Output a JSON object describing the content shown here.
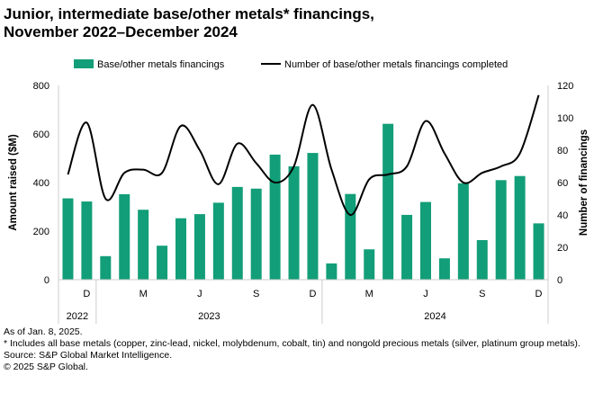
{
  "chart_data": {
    "type": "bar+line",
    "title": "Junior, intermediate base/other metals* financings, November 2022–December 2024",
    "categories": [
      "Nov 2022",
      "Dec 2022",
      "Jan 2023",
      "Feb 2023",
      "Mar 2023",
      "Apr 2023",
      "May 2023",
      "Jun 2023",
      "Jul 2023",
      "Aug 2023",
      "Sep 2023",
      "Oct 2023",
      "Nov 2023",
      "Dec 2023",
      "Jan 2024",
      "Feb 2024",
      "Mar 2024",
      "Apr 2024",
      "May 2024",
      "Jun 2024",
      "Jul 2024",
      "Aug 2024",
      "Sep 2024",
      "Oct 2024",
      "Nov 2024",
      "Dec 2024"
    ],
    "month_ticks": [
      "",
      "D",
      "",
      "",
      "M",
      "",
      "",
      "J",
      "",
      "",
      "S",
      "",
      "",
      "D",
      "",
      "",
      "M",
      "",
      "",
      "J",
      "",
      "",
      "S",
      "",
      "",
      "D"
    ],
    "years": [
      {
        "label": "2022",
        "from": 0,
        "to": 1
      },
      {
        "label": "2023",
        "from": 2,
        "to": 13
      },
      {
        "label": "2024",
        "from": 14,
        "to": 25
      }
    ],
    "series": [
      {
        "name": "Base/other metals financings",
        "type": "bar",
        "axis": "left",
        "color": "#129e78",
        "values": [
          335,
          322,
          97,
          352,
          288,
          140,
          253,
          270,
          317,
          382,
          375,
          515,
          467,
          522,
          67,
          353,
          125,
          642,
          267,
          320,
          88,
          397,
          163,
          410,
          427,
          232
        ]
      },
      {
        "name": "Number of base/other metals financings completed",
        "type": "line",
        "axis": "right",
        "color": "#000000",
        "values": [
          65,
          97,
          50,
          66,
          68,
          66,
          95,
          80,
          59,
          84,
          72,
          60,
          70,
          108,
          68,
          40,
          62,
          65,
          70,
          98,
          78,
          60,
          66,
          70,
          78,
          114
        ]
      }
    ],
    "ylabel": "Amount raised ($M)",
    "ylim": [
      0,
      800
    ],
    "yticks": [
      0,
      200,
      400,
      600,
      800
    ],
    "y2label": "Number of financings",
    "y2lim": [
      0,
      120
    ],
    "y2ticks": [
      0,
      20,
      40,
      60,
      80,
      100,
      120
    ],
    "legend": "top",
    "grid": false
  },
  "notes": [
    "As of Jan. 8, 2025.",
    "* Includes all base metals (copper, zinc-lead, nickel, molybdenum, cobalt, tin) and nongold precious metals (silver, platinum group metals).",
    "Source: S&P Global Market Intelligence.",
    "© 2025 S&P Global."
  ]
}
